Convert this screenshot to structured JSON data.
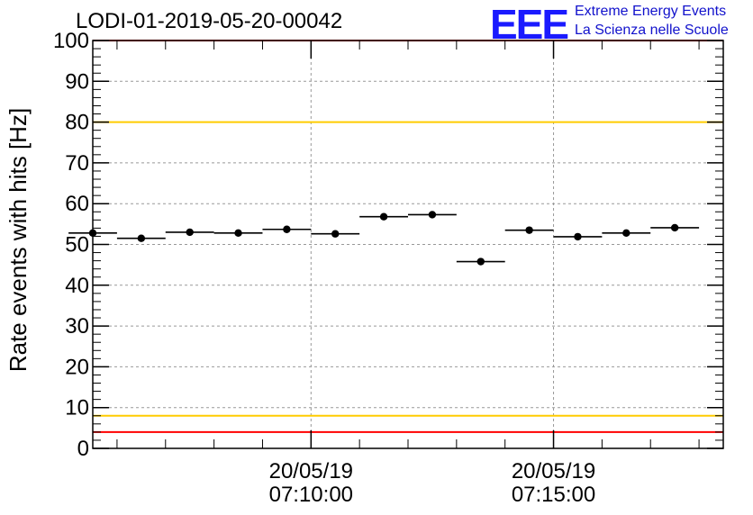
{
  "title": "LODI-01-2019-05-20-00042",
  "logo": {
    "mark": "EEE",
    "line1": "Extreme Energy Events",
    "line2": "La Scienza nelle Scuole",
    "color": "#1a1aff"
  },
  "chart_data": {
    "type": "scatter",
    "title": "LODI-01-2019-05-20-00042",
    "ylabel": "Rate events with hits [Hz]",
    "xlabel": "",
    "ylim": [
      0,
      100
    ],
    "yticks": [
      0,
      10,
      20,
      30,
      40,
      50,
      60,
      70,
      80,
      90,
      100
    ],
    "xlim": [
      "2019-05-20 07:05:30",
      "2019-05-20 07:18:30"
    ],
    "xticks": [
      {
        "time": "2019-05-20 07:10:00",
        "date_label": "20/05/19",
        "time_label": "07:10:00"
      },
      {
        "time": "2019-05-20 07:15:00",
        "date_label": "20/05/19",
        "time_label": "07:15:00"
      }
    ],
    "grid": true,
    "bin_width_s": 60,
    "points": [
      {
        "t": "2019-05-20 07:05:30",
        "rate": 52.8
      },
      {
        "t": "2019-05-20 07:06:30",
        "rate": 51.5
      },
      {
        "t": "2019-05-20 07:07:30",
        "rate": 53.0
      },
      {
        "t": "2019-05-20 07:08:30",
        "rate": 52.8
      },
      {
        "t": "2019-05-20 07:09:30",
        "rate": 53.7
      },
      {
        "t": "2019-05-20 07:10:30",
        "rate": 52.6
      },
      {
        "t": "2019-05-20 07:11:30",
        "rate": 56.8
      },
      {
        "t": "2019-05-20 07:12:30",
        "rate": 57.3
      },
      {
        "t": "2019-05-20 07:13:30",
        "rate": 45.8
      },
      {
        "t": "2019-05-20 07:14:30",
        "rate": 53.5
      },
      {
        "t": "2019-05-20 07:15:30",
        "rate": 51.9
      },
      {
        "t": "2019-05-20 07:16:30",
        "rate": 52.8
      },
      {
        "t": "2019-05-20 07:17:30",
        "rate": 54.1
      }
    ],
    "reference_lines": [
      {
        "y": 100,
        "color": "#ff0000"
      },
      {
        "y": 80,
        "color": "#ffcc00"
      },
      {
        "y": 8,
        "color": "#ffcc00"
      },
      {
        "y": 4,
        "color": "#ff0000"
      }
    ]
  }
}
